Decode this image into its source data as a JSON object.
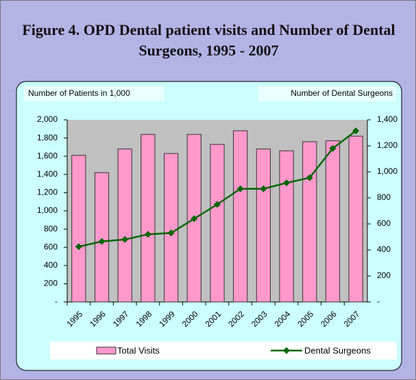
{
  "chart_data": {
    "type": "bar-line",
    "title": "Figure 4. OPD Dental patient visits and Number of Dental Surgeons, 1995 - 2007",
    "y_label": "Number of Patients in 1,000",
    "y2_label": "Number of Dental Surgeons",
    "categories": [
      "1995",
      "1996",
      "1997",
      "1998",
      "1999",
      "2000",
      "2001",
      "2002",
      "2003",
      "2004",
      "2005",
      "2006",
      "2007"
    ],
    "series": [
      {
        "name": "Total Visits",
        "type": "bar",
        "color": "#ff99cc",
        "values": [
          1610,
          1420,
          1680,
          1840,
          1630,
          1840,
          1730,
          1880,
          1680,
          1660,
          1760,
          1770,
          1820
        ]
      },
      {
        "name": "Dental Surgeons",
        "type": "line",
        "axis": "y2",
        "color": "#006600",
        "values": [
          425,
          465,
          480,
          520,
          530,
          640,
          750,
          870,
          870,
          915,
          955,
          1180,
          1315
        ]
      }
    ],
    "ylim": [
      0,
      2000
    ],
    "yticks": [
      {
        "value": 0,
        "label": "-"
      },
      200,
      400,
      600,
      800,
      {
        "value": 1000,
        "label": "1,000"
      },
      {
        "value": 1200,
        "label": "1,200"
      },
      {
        "value": 1400,
        "label": "1,400"
      },
      {
        "value": 1600,
        "label": "1,600"
      },
      {
        "value": 1800,
        "label": "1,800"
      },
      {
        "value": 2000,
        "label": "2,000"
      }
    ],
    "y2lim": [
      0,
      1400
    ],
    "y2ticks": [
      {
        "value": 0,
        "label": "-"
      },
      200,
      400,
      600,
      800,
      {
        "value": 1000,
        "label": "1,000"
      },
      {
        "value": 1200,
        "label": "1,200"
      },
      {
        "value": 1400,
        "label": "1,400"
      }
    ],
    "legend": "bottom"
  }
}
